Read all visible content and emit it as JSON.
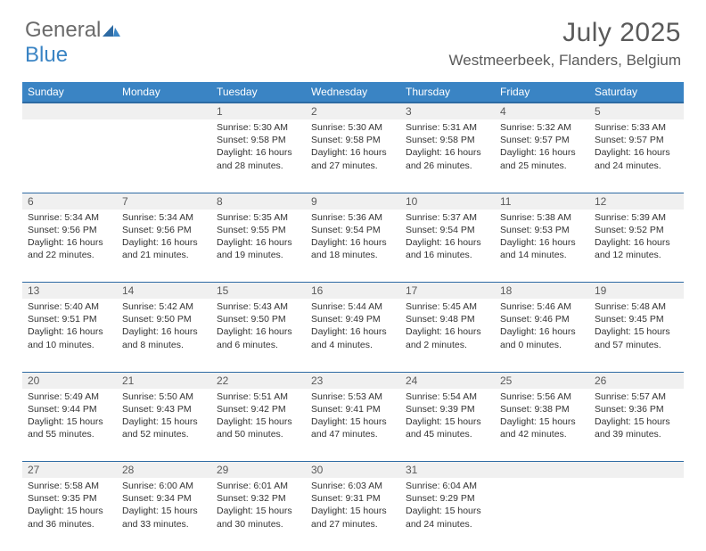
{
  "logo": {
    "text_gray": "General",
    "text_blue": "Blue"
  },
  "title": "July 2025",
  "location": "Westmeerbeek, Flanders, Belgium",
  "colors": {
    "header_bg": "#3a84c4",
    "header_border": "#2d6aa3",
    "daynum_bg": "#f0f0f0",
    "text_main": "#333333",
    "text_muted": "#5a5a5a"
  },
  "weekdays": [
    "Sunday",
    "Monday",
    "Tuesday",
    "Wednesday",
    "Thursday",
    "Friday",
    "Saturday"
  ],
  "weeks": [
    [
      null,
      null,
      {
        "n": "1",
        "sr": "5:30 AM",
        "ss": "9:58 PM",
        "dl": "16 hours and 28 minutes."
      },
      {
        "n": "2",
        "sr": "5:30 AM",
        "ss": "9:58 PM",
        "dl": "16 hours and 27 minutes."
      },
      {
        "n": "3",
        "sr": "5:31 AM",
        "ss": "9:58 PM",
        "dl": "16 hours and 26 minutes."
      },
      {
        "n": "4",
        "sr": "5:32 AM",
        "ss": "9:57 PM",
        "dl": "16 hours and 25 minutes."
      },
      {
        "n": "5",
        "sr": "5:33 AM",
        "ss": "9:57 PM",
        "dl": "16 hours and 24 minutes."
      }
    ],
    [
      {
        "n": "6",
        "sr": "5:34 AM",
        "ss": "9:56 PM",
        "dl": "16 hours and 22 minutes."
      },
      {
        "n": "7",
        "sr": "5:34 AM",
        "ss": "9:56 PM",
        "dl": "16 hours and 21 minutes."
      },
      {
        "n": "8",
        "sr": "5:35 AM",
        "ss": "9:55 PM",
        "dl": "16 hours and 19 minutes."
      },
      {
        "n": "9",
        "sr": "5:36 AM",
        "ss": "9:54 PM",
        "dl": "16 hours and 18 minutes."
      },
      {
        "n": "10",
        "sr": "5:37 AM",
        "ss": "9:54 PM",
        "dl": "16 hours and 16 minutes."
      },
      {
        "n": "11",
        "sr": "5:38 AM",
        "ss": "9:53 PM",
        "dl": "16 hours and 14 minutes."
      },
      {
        "n": "12",
        "sr": "5:39 AM",
        "ss": "9:52 PM",
        "dl": "16 hours and 12 minutes."
      }
    ],
    [
      {
        "n": "13",
        "sr": "5:40 AM",
        "ss": "9:51 PM",
        "dl": "16 hours and 10 minutes."
      },
      {
        "n": "14",
        "sr": "5:42 AM",
        "ss": "9:50 PM",
        "dl": "16 hours and 8 minutes."
      },
      {
        "n": "15",
        "sr": "5:43 AM",
        "ss": "9:50 PM",
        "dl": "16 hours and 6 minutes."
      },
      {
        "n": "16",
        "sr": "5:44 AM",
        "ss": "9:49 PM",
        "dl": "16 hours and 4 minutes."
      },
      {
        "n": "17",
        "sr": "5:45 AM",
        "ss": "9:48 PM",
        "dl": "16 hours and 2 minutes."
      },
      {
        "n": "18",
        "sr": "5:46 AM",
        "ss": "9:46 PM",
        "dl": "16 hours and 0 minutes."
      },
      {
        "n": "19",
        "sr": "5:48 AM",
        "ss": "9:45 PM",
        "dl": "15 hours and 57 minutes."
      }
    ],
    [
      {
        "n": "20",
        "sr": "5:49 AM",
        "ss": "9:44 PM",
        "dl": "15 hours and 55 minutes."
      },
      {
        "n": "21",
        "sr": "5:50 AM",
        "ss": "9:43 PM",
        "dl": "15 hours and 52 minutes."
      },
      {
        "n": "22",
        "sr": "5:51 AM",
        "ss": "9:42 PM",
        "dl": "15 hours and 50 minutes."
      },
      {
        "n": "23",
        "sr": "5:53 AM",
        "ss": "9:41 PM",
        "dl": "15 hours and 47 minutes."
      },
      {
        "n": "24",
        "sr": "5:54 AM",
        "ss": "9:39 PM",
        "dl": "15 hours and 45 minutes."
      },
      {
        "n": "25",
        "sr": "5:56 AM",
        "ss": "9:38 PM",
        "dl": "15 hours and 42 minutes."
      },
      {
        "n": "26",
        "sr": "5:57 AM",
        "ss": "9:36 PM",
        "dl": "15 hours and 39 minutes."
      }
    ],
    [
      {
        "n": "27",
        "sr": "5:58 AM",
        "ss": "9:35 PM",
        "dl": "15 hours and 36 minutes."
      },
      {
        "n": "28",
        "sr": "6:00 AM",
        "ss": "9:34 PM",
        "dl": "15 hours and 33 minutes."
      },
      {
        "n": "29",
        "sr": "6:01 AM",
        "ss": "9:32 PM",
        "dl": "15 hours and 30 minutes."
      },
      {
        "n": "30",
        "sr": "6:03 AM",
        "ss": "9:31 PM",
        "dl": "15 hours and 27 minutes."
      },
      {
        "n": "31",
        "sr": "6:04 AM",
        "ss": "9:29 PM",
        "dl": "15 hours and 24 minutes."
      },
      null,
      null
    ]
  ],
  "labels": {
    "sunrise": "Sunrise:",
    "sunset": "Sunset:",
    "daylight": "Daylight:"
  }
}
